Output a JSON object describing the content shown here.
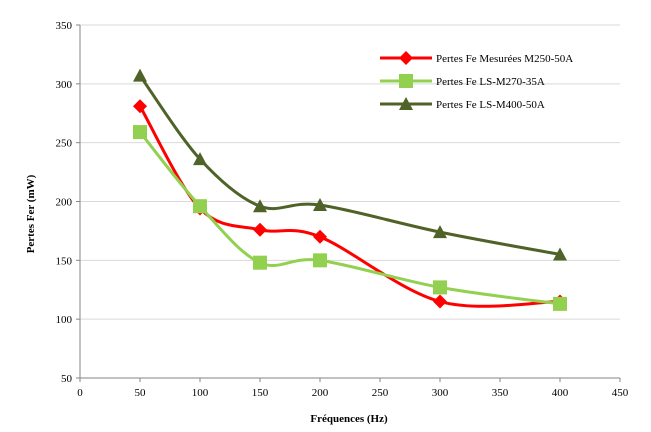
{
  "chart_data": {
    "type": "line",
    "title": "",
    "xlabel": "Fréquences (Hz)",
    "ylabel": "Pertes Fer (mW)",
    "xlim": [
      0,
      450
    ],
    "ylim": [
      50,
      350
    ],
    "x_ticks": [
      0,
      50,
      100,
      150,
      200,
      250,
      300,
      350,
      400,
      450
    ],
    "y_ticks": [
      50,
      100,
      150,
      200,
      250,
      300,
      350
    ],
    "grid": "horizontal",
    "legend_position": "top-right",
    "series": [
      {
        "name": "Pertes Fe Mesurées M250-50A",
        "color": "#ff0000",
        "marker": "diamond",
        "x": [
          50,
          100,
          150,
          200,
          300,
          400
        ],
        "y": [
          281,
          194,
          176,
          170,
          115,
          115
        ]
      },
      {
        "name": "Pertes Fe LS-M270-35A",
        "color": "#92d050",
        "marker": "square",
        "x": [
          50,
          100,
          150,
          200,
          300,
          400
        ],
        "y": [
          259,
          196,
          148,
          150,
          127,
          113
        ]
      },
      {
        "name": "Pertes Fe LS-M400-50A",
        "color": "#4f6228",
        "marker": "triangle",
        "x": [
          50,
          100,
          150,
          200,
          300,
          400
        ],
        "y": [
          307,
          236,
          196,
          197,
          174,
          155
        ]
      }
    ]
  }
}
